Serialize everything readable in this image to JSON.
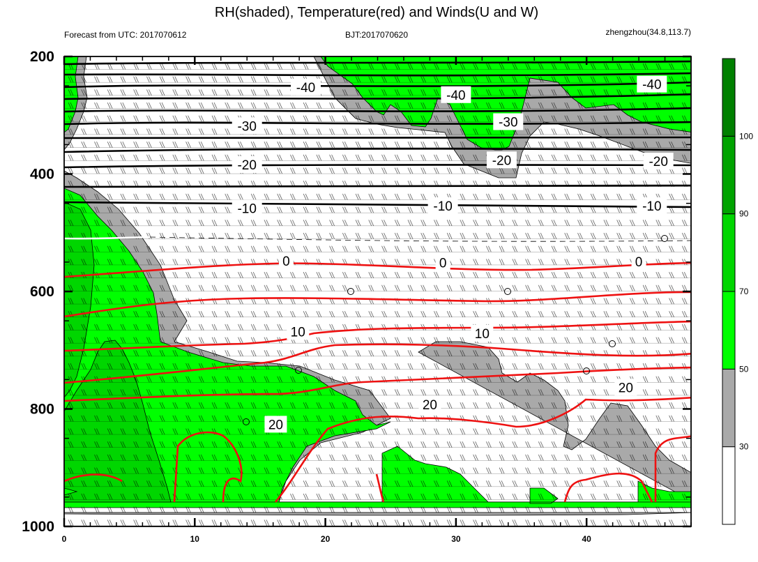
{
  "chart_data": {
    "type": "heatmap",
    "title": "RH(shaded), Temperature(red) and Winds(U and W)",
    "left_string": "Forecast from UTC: 2017070612",
    "center_string": "BJT:2017070620",
    "right_string": "zhengzhou(34.8,113.7)",
    "x_range": [
      0,
      48
    ],
    "x_ticks": [
      "0",
      "10",
      "20",
      "30",
      "40"
    ],
    "x_tick_values": [
      0,
      10,
      20,
      30,
      40
    ],
    "y_range": [
      200,
      1000
    ],
    "y_ticks": [
      "200",
      "400",
      "600",
      "800",
      "1000"
    ],
    "y_tick_values": [
      200,
      400,
      600,
      800,
      1000
    ],
    "colorbar": {
      "labels": [
        "30",
        "50",
        "70",
        "90",
        "100"
      ],
      "label_values": [
        30,
        50,
        70,
        90,
        100
      ],
      "colors": [
        "#ffffff",
        "#a9a9a9",
        "#00ff00",
        "#00d600",
        "#00a300",
        "#008000"
      ]
    },
    "contour_labels": [
      {
        "text": "-40",
        "x": 18.5,
        "p": 252,
        "color": "black"
      },
      {
        "text": "-40",
        "x": 30.0,
        "p": 265,
        "color": "black"
      },
      {
        "text": "-40",
        "x": 45.0,
        "p": 247,
        "color": "black"
      },
      {
        "text": "-30",
        "x": 14.0,
        "p": 318,
        "color": "black"
      },
      {
        "text": "-30",
        "x": 34.0,
        "p": 311,
        "color": "black"
      },
      {
        "text": "-20",
        "x": 14.0,
        "p": 384,
        "color": "black"
      },
      {
        "text": "-20",
        "x": 33.5,
        "p": 376,
        "color": "black"
      },
      {
        "text": "-20",
        "x": 45.5,
        "p": 378,
        "color": "black"
      },
      {
        "text": "-10",
        "x": 14.0,
        "p": 458,
        "color": "black"
      },
      {
        "text": "-10",
        "x": 29.0,
        "p": 454,
        "color": "black"
      },
      {
        "text": "-10",
        "x": 45.0,
        "p": 454,
        "color": "black"
      },
      {
        "text": "0",
        "x": 17.0,
        "p": 548,
        "color": "black"
      },
      {
        "text": "0",
        "x": 29.0,
        "p": 551,
        "color": "black"
      },
      {
        "text": "0",
        "x": 44.0,
        "p": 549,
        "color": "black"
      },
      {
        "text": "10",
        "x": 17.9,
        "p": 668,
        "color": "black"
      },
      {
        "text": "10",
        "x": 32.0,
        "p": 671,
        "color": "black"
      },
      {
        "text": "20",
        "x": 16.2,
        "p": 826,
        "color": "black"
      },
      {
        "text": "20",
        "x": 28.0,
        "p": 792,
        "color": "black"
      },
      {
        "text": "20",
        "x": 43.0,
        "p": 763,
        "color": "black"
      }
    ]
  }
}
